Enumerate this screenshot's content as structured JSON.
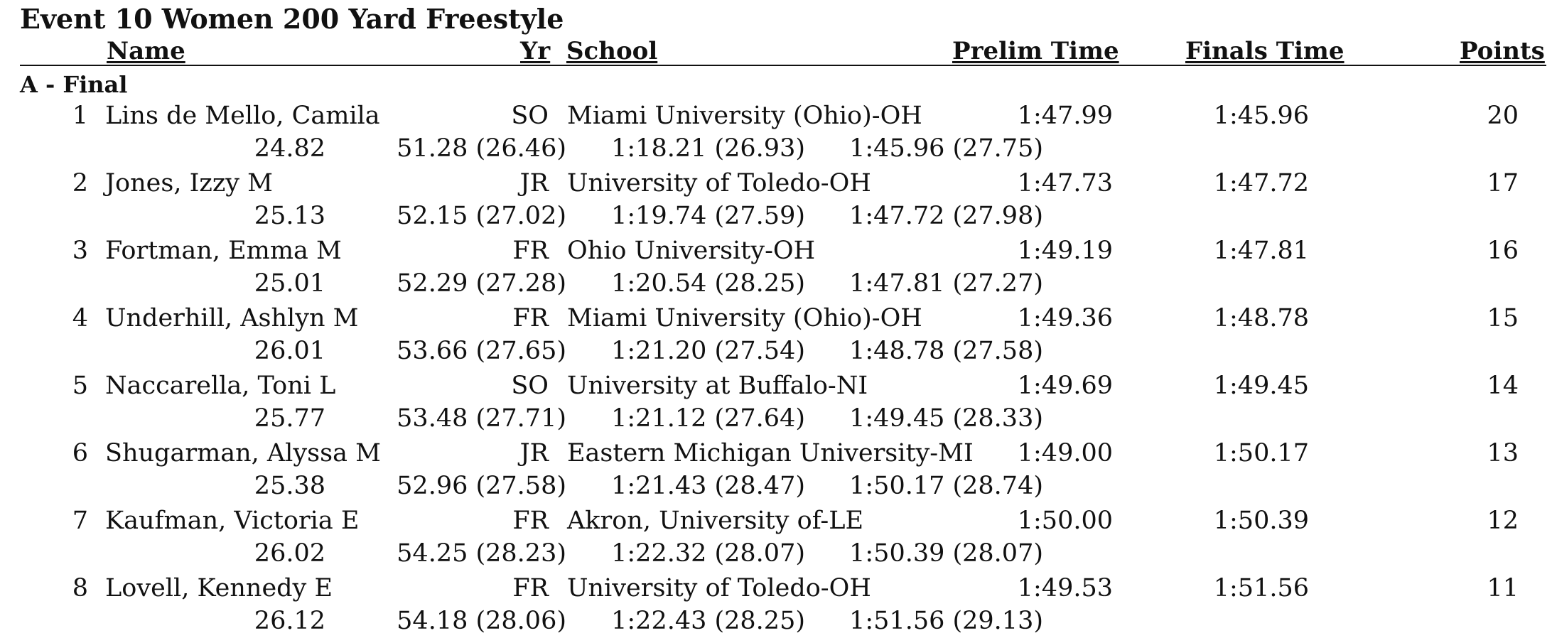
{
  "event": {
    "title": "Event 10  Women 200 Yard Freestyle"
  },
  "headers": {
    "name": "Name",
    "yr": "Yr",
    "school": "School",
    "prelim": "Prelim Time",
    "finals": "Finals Time",
    "points": "Points"
  },
  "section": {
    "label": "A - Final"
  },
  "results": [
    {
      "place": "1",
      "name": "Lins de Mello, Camila",
      "yr": "SO",
      "school": "Miami University (Ohio)-OH",
      "prelim": "1:47.99",
      "finals": "1:45.96",
      "points": "20",
      "splits": [
        "24.82",
        "51.28 (26.46)",
        "1:18.21 (26.93)",
        "1:45.96 (27.75)"
      ]
    },
    {
      "place": "2",
      "name": "Jones, Izzy M",
      "yr": "JR",
      "school": "University of Toledo-OH",
      "prelim": "1:47.73",
      "finals": "1:47.72",
      "points": "17",
      "splits": [
        "25.13",
        "52.15 (27.02)",
        "1:19.74 (27.59)",
        "1:47.72 (27.98)"
      ]
    },
    {
      "place": "3",
      "name": "Fortman, Emma M",
      "yr": "FR",
      "school": "Ohio University-OH",
      "prelim": "1:49.19",
      "finals": "1:47.81",
      "points": "16",
      "splits": [
        "25.01",
        "52.29 (27.28)",
        "1:20.54 (28.25)",
        "1:47.81 (27.27)"
      ]
    },
    {
      "place": "4",
      "name": "Underhill, Ashlyn M",
      "yr": "FR",
      "school": "Miami University (Ohio)-OH",
      "prelim": "1:49.36",
      "finals": "1:48.78",
      "points": "15",
      "splits": [
        "26.01",
        "53.66 (27.65)",
        "1:21.20 (27.54)",
        "1:48.78 (27.58)"
      ]
    },
    {
      "place": "5",
      "name": "Naccarella, Toni L",
      "yr": "SO",
      "school": "University at Buffalo-NI",
      "prelim": "1:49.69",
      "finals": "1:49.45",
      "points": "14",
      "splits": [
        "25.77",
        "53.48 (27.71)",
        "1:21.12 (27.64)",
        "1:49.45 (28.33)"
      ]
    },
    {
      "place": "6",
      "name": "Shugarman, Alyssa M",
      "yr": "JR",
      "school": "Eastern Michigan University-MI",
      "prelim": "1:49.00",
      "finals": "1:50.17",
      "points": "13",
      "splits": [
        "25.38",
        "52.96 (27.58)",
        "1:21.43 (28.47)",
        "1:50.17 (28.74)"
      ]
    },
    {
      "place": "7",
      "name": "Kaufman, Victoria E",
      "yr": "FR",
      "school": "Akron, University of-LE",
      "prelim": "1:50.00",
      "finals": "1:50.39",
      "points": "12",
      "splits": [
        "26.02",
        "54.25 (28.23)",
        "1:22.32 (28.07)",
        "1:50.39 (28.07)"
      ]
    },
    {
      "place": "8",
      "name": "Lovell, Kennedy E",
      "yr": "FR",
      "school": "University of Toledo-OH",
      "prelim": "1:49.53",
      "finals": "1:51.56",
      "points": "11",
      "splits": [
        "26.12",
        "54.18 (28.06)",
        "1:22.43 (28.25)",
        "1:51.56 (29.13)"
      ]
    }
  ]
}
